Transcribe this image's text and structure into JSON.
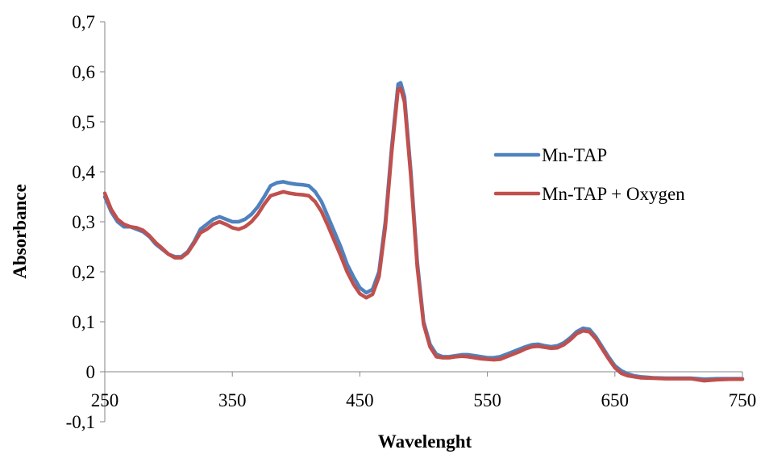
{
  "chart_data": {
    "type": "line",
    "title": "",
    "xlabel": "Wavelenght",
    "ylabel": "Absorbance",
    "xlim": [
      250,
      750
    ],
    "ylim": [
      -0.1,
      0.7
    ],
    "x_ticks": [
      "250",
      "350",
      "450",
      "550",
      "650",
      "750"
    ],
    "y_ticks": [
      "-0,1",
      "0",
      "0,1",
      "0,2",
      "0,3",
      "0,4",
      "0,5",
      "0,6",
      "0,7"
    ],
    "grid": false,
    "legend_position": "right",
    "series": [
      {
        "name": "Mn-TAP",
        "color": "#4F81BD",
        "x": [
          250,
          255,
          260,
          265,
          270,
          275,
          280,
          285,
          290,
          295,
          300,
          305,
          310,
          315,
          320,
          325,
          330,
          335,
          340,
          345,
          350,
          355,
          360,
          365,
          370,
          375,
          380,
          385,
          390,
          395,
          400,
          405,
          410,
          415,
          420,
          425,
          430,
          435,
          440,
          445,
          450,
          455,
          460,
          465,
          470,
          475,
          480,
          482,
          485,
          490,
          495,
          500,
          505,
          510,
          515,
          520,
          525,
          530,
          535,
          540,
          545,
          550,
          555,
          560,
          565,
          570,
          575,
          580,
          585,
          590,
          595,
          600,
          605,
          610,
          615,
          620,
          625,
          630,
          635,
          640,
          645,
          650,
          655,
          660,
          665,
          670,
          680,
          690,
          700,
          710,
          715,
          720,
          730,
          740,
          750
        ],
        "y": [
          0.35,
          0.32,
          0.3,
          0.29,
          0.29,
          0.285,
          0.28,
          0.27,
          0.255,
          0.245,
          0.235,
          0.23,
          0.23,
          0.24,
          0.26,
          0.285,
          0.295,
          0.305,
          0.31,
          0.305,
          0.3,
          0.3,
          0.305,
          0.315,
          0.33,
          0.35,
          0.372,
          0.378,
          0.38,
          0.377,
          0.375,
          0.374,
          0.372,
          0.36,
          0.34,
          0.31,
          0.28,
          0.25,
          0.215,
          0.19,
          0.168,
          0.158,
          0.165,
          0.2,
          0.3,
          0.45,
          0.575,
          0.578,
          0.55,
          0.4,
          0.22,
          0.1,
          0.055,
          0.035,
          0.03,
          0.03,
          0.032,
          0.034,
          0.034,
          0.032,
          0.03,
          0.028,
          0.028,
          0.03,
          0.035,
          0.04,
          0.045,
          0.05,
          0.054,
          0.055,
          0.052,
          0.05,
          0.052,
          0.058,
          0.068,
          0.08,
          0.087,
          0.085,
          0.07,
          0.05,
          0.03,
          0.012,
          0.002,
          -0.004,
          -0.008,
          -0.01,
          -0.012,
          -0.013,
          -0.013,
          -0.013,
          -0.014,
          -0.015,
          -0.014,
          -0.014,
          -0.014
        ]
      },
      {
        "name": "Mn-TAP + Oxygen",
        "color": "#C0504D",
        "x": [
          250,
          255,
          260,
          265,
          270,
          275,
          280,
          285,
          290,
          295,
          300,
          305,
          310,
          315,
          320,
          325,
          330,
          335,
          340,
          345,
          350,
          355,
          360,
          365,
          370,
          375,
          380,
          385,
          390,
          395,
          400,
          405,
          410,
          415,
          420,
          425,
          430,
          435,
          440,
          445,
          450,
          455,
          460,
          465,
          470,
          475,
          480,
          482,
          485,
          490,
          495,
          500,
          505,
          510,
          515,
          520,
          525,
          530,
          535,
          540,
          545,
          550,
          555,
          560,
          565,
          570,
          575,
          580,
          585,
          590,
          595,
          600,
          605,
          610,
          615,
          620,
          625,
          630,
          635,
          640,
          645,
          650,
          655,
          660,
          665,
          670,
          680,
          690,
          700,
          710,
          715,
          720,
          730,
          740,
          750
        ],
        "y": [
          0.357,
          0.325,
          0.305,
          0.295,
          0.29,
          0.288,
          0.283,
          0.272,
          0.258,
          0.247,
          0.235,
          0.228,
          0.228,
          0.238,
          0.257,
          0.278,
          0.285,
          0.295,
          0.3,
          0.295,
          0.288,
          0.285,
          0.29,
          0.3,
          0.315,
          0.335,
          0.352,
          0.356,
          0.36,
          0.357,
          0.355,
          0.354,
          0.352,
          0.34,
          0.32,
          0.292,
          0.262,
          0.232,
          0.2,
          0.175,
          0.156,
          0.148,
          0.155,
          0.19,
          0.29,
          0.44,
          0.565,
          0.567,
          0.54,
          0.39,
          0.21,
          0.095,
          0.05,
          0.03,
          0.028,
          0.028,
          0.03,
          0.031,
          0.03,
          0.028,
          0.026,
          0.025,
          0.024,
          0.025,
          0.03,
          0.035,
          0.04,
          0.046,
          0.05,
          0.051,
          0.049,
          0.047,
          0.048,
          0.054,
          0.064,
          0.076,
          0.082,
          0.08,
          0.066,
          0.046,
          0.026,
          0.008,
          -0.003,
          -0.008,
          -0.01,
          -0.012,
          -0.013,
          -0.014,
          -0.014,
          -0.014,
          -0.016,
          -0.018,
          -0.016,
          -0.015,
          -0.015
        ]
      }
    ]
  }
}
